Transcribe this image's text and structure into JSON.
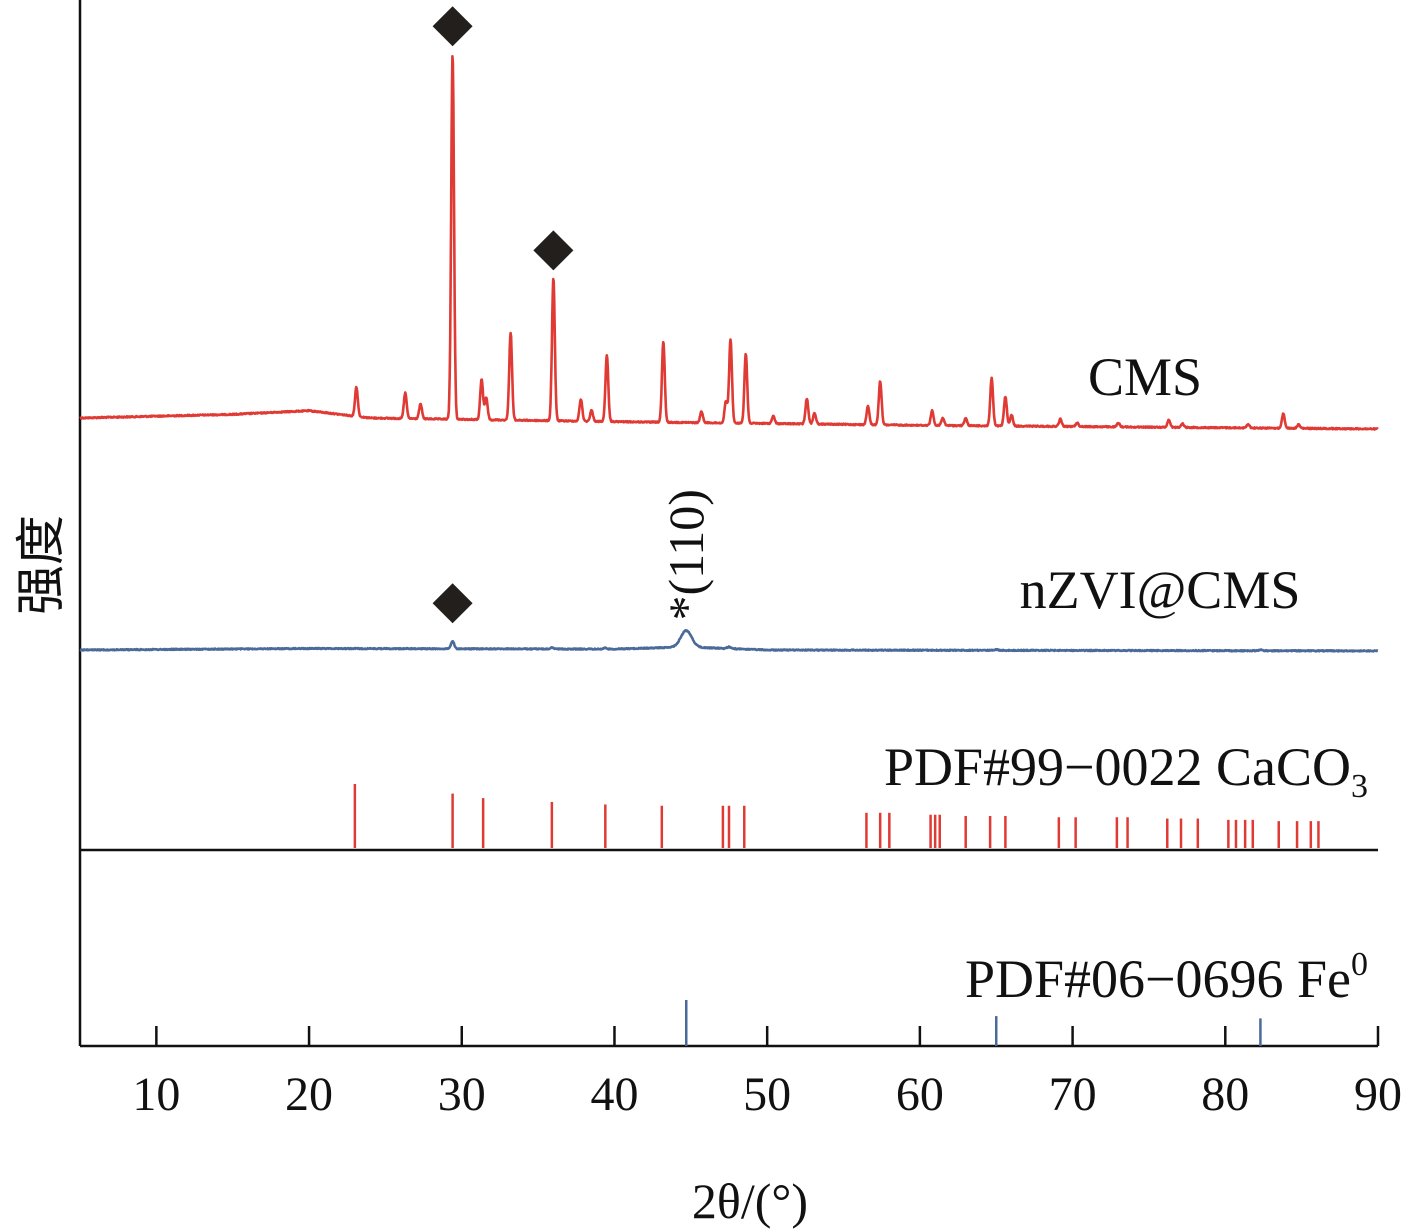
{
  "chart_data": {
    "type": "line",
    "xlabel": "2θ/(°)",
    "ylabel": "强度",
    "xlim": [
      5,
      90
    ],
    "xticks": [
      10,
      20,
      30,
      40,
      50,
      60,
      70,
      80,
      90
    ],
    "series": [
      {
        "name": "CMS",
        "color": "#e03a34",
        "baseline": [
          [
            5,
            0.0
          ],
          [
            15,
            0.01
          ],
          [
            20,
            0.02
          ],
          [
            24,
            0.0
          ],
          [
            40,
            -0.01
          ],
          [
            60,
            -0.02
          ],
          [
            90,
            -0.03
          ]
        ],
        "peaks": [
          [
            23.1,
            0.08
          ],
          [
            26.3,
            0.07
          ],
          [
            27.3,
            0.04
          ],
          [
            29.4,
            1.0
          ],
          [
            31.3,
            0.11
          ],
          [
            31.6,
            0.06
          ],
          [
            33.2,
            0.24
          ],
          [
            36.0,
            0.39
          ],
          [
            37.8,
            0.06
          ],
          [
            38.5,
            0.03
          ],
          [
            39.5,
            0.18
          ],
          [
            43.2,
            0.22
          ],
          [
            45.7,
            0.03
          ],
          [
            47.3,
            0.06
          ],
          [
            47.6,
            0.23
          ],
          [
            48.6,
            0.19
          ],
          [
            50.4,
            0.02
          ],
          [
            52.6,
            0.07
          ],
          [
            53.1,
            0.03
          ],
          [
            56.6,
            0.05
          ],
          [
            57.4,
            0.12
          ],
          [
            60.8,
            0.04
          ],
          [
            61.5,
            0.02
          ],
          [
            63.0,
            0.02
          ],
          [
            64.7,
            0.13
          ],
          [
            65.6,
            0.08
          ],
          [
            66.0,
            0.03
          ],
          [
            69.2,
            0.02
          ],
          [
            70.3,
            0.01
          ],
          [
            73.0,
            0.01
          ],
          [
            76.3,
            0.02
          ],
          [
            77.2,
            0.01
          ],
          [
            81.5,
            0.01
          ],
          [
            83.8,
            0.04
          ],
          [
            84.8,
            0.01
          ]
        ],
        "marker_peaks": [
          29.4,
          36.0
        ]
      },
      {
        "name": "nZVI@CMS",
        "color": "#4a6a99",
        "baseline": [
          [
            5,
            0.0
          ],
          [
            20,
            0.005
          ],
          [
            40,
            0.003
          ],
          [
            44.7,
            0.01
          ],
          [
            50,
            0.0
          ],
          [
            90,
            -0.003
          ]
        ],
        "peaks": [
          [
            29.4,
            0.025
          ],
          [
            35.9,
            0.004
          ],
          [
            39.4,
            0.004
          ],
          [
            44.7,
            0.055
          ],
          [
            47.5,
            0.006
          ],
          [
            65.0,
            0.003
          ],
          [
            82.3,
            0.003
          ]
        ],
        "marker_peaks": [
          29.4
        ],
        "annotation": "*(110)"
      }
    ],
    "references": [
      {
        "name": "PDF#99−0022 CaCO",
        "subscript": "3",
        "color": "#e03a34",
        "positions": [
          23.0,
          29.4,
          31.4,
          35.9,
          39.4,
          43.1,
          47.1,
          47.5,
          48.5,
          56.5,
          57.4,
          58.0,
          60.7,
          61.0,
          61.3,
          63.0,
          64.6,
          65.6,
          69.1,
          70.2,
          72.9,
          73.6,
          76.2,
          77.1,
          78.2,
          80.2,
          80.7,
          81.3,
          81.8,
          83.5,
          84.7,
          85.6,
          86.1
        ],
        "intensities": [
          1.0,
          0.85,
          0.78,
          0.72,
          0.68,
          0.66,
          0.66,
          0.66,
          0.66,
          0.55,
          0.55,
          0.55,
          0.52,
          0.52,
          0.52,
          0.5,
          0.5,
          0.5,
          0.48,
          0.48,
          0.48,
          0.48,
          0.46,
          0.46,
          0.46,
          0.44,
          0.44,
          0.44,
          0.44,
          0.42,
          0.42,
          0.42,
          0.42
        ]
      },
      {
        "name": "PDF#06−0696 Fe",
        "superscript": "0",
        "color": "#4a6a99",
        "positions": [
          44.7,
          65.0,
          82.3
        ],
        "intensities": [
          1.0,
          0.65,
          0.6
        ]
      }
    ],
    "marker_symbol": "◆"
  }
}
